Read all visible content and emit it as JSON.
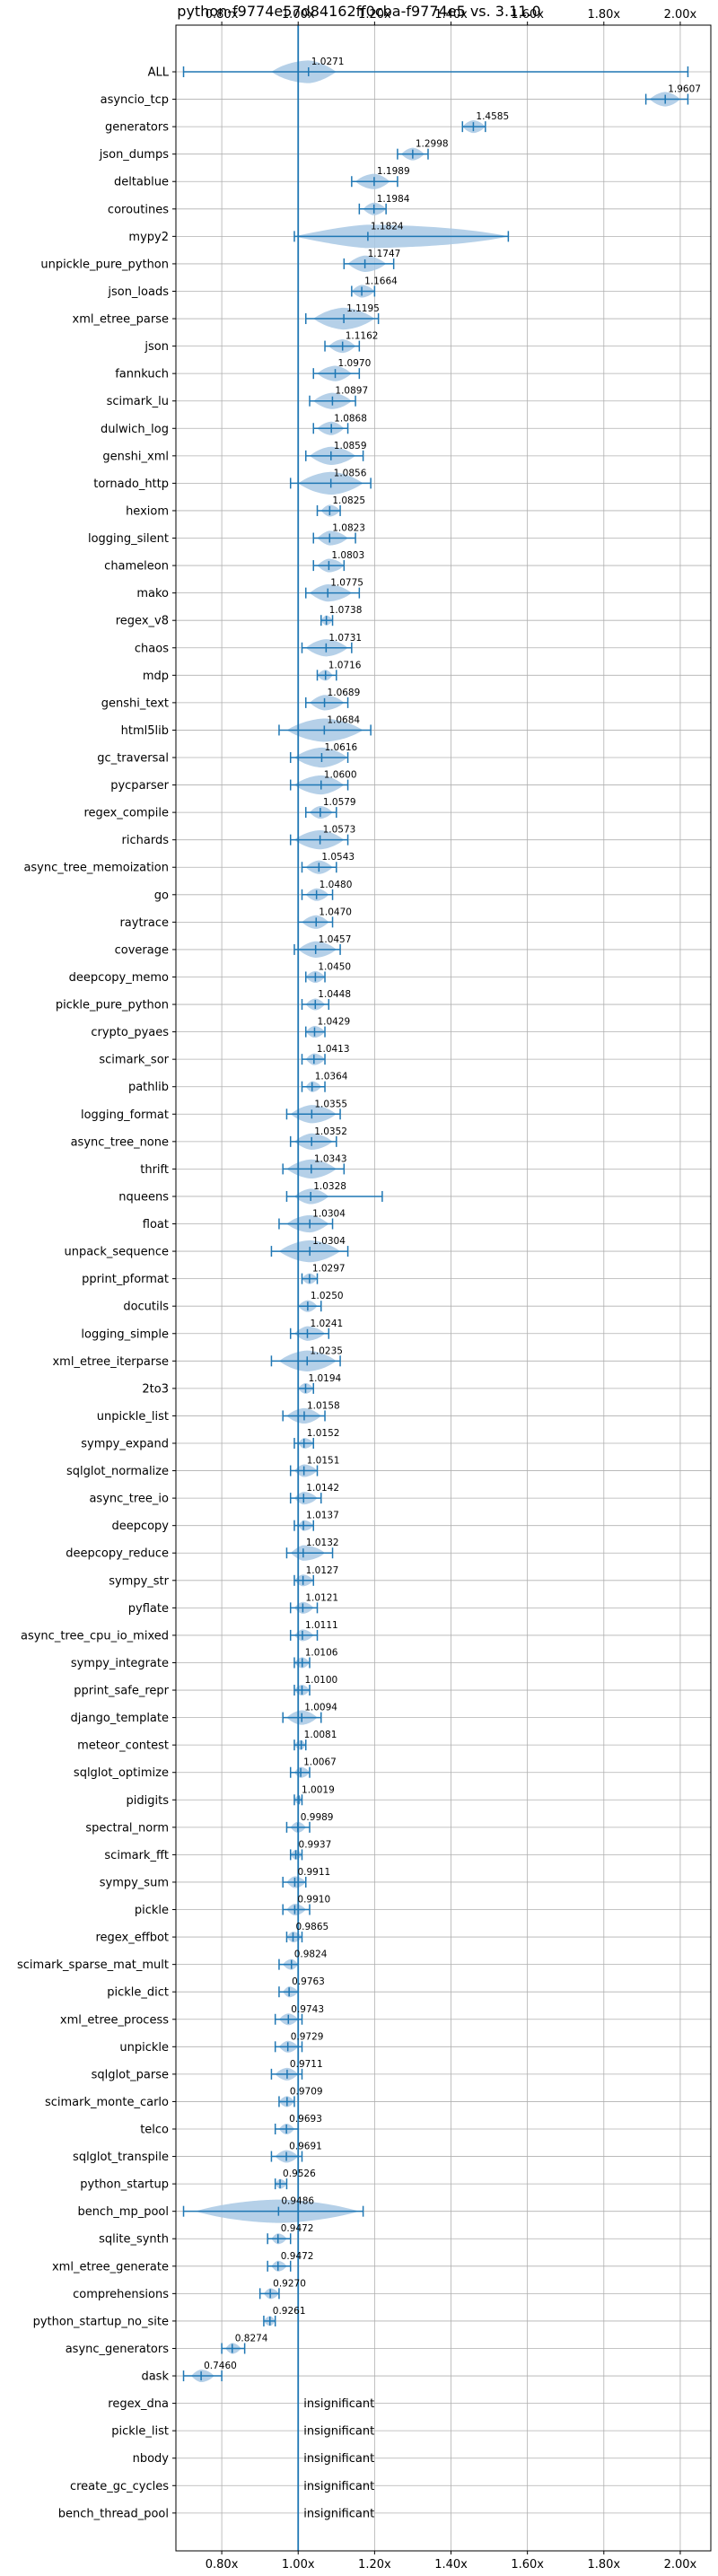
{
  "chart_data": {
    "type": "violin",
    "title": "python-f9774e57d84162ff0cba-f9774e5 vs. 3.11.0",
    "xlim": [
      0.68,
      2.08
    ],
    "x_ticks": [
      0.8,
      1.0,
      1.2,
      1.4,
      1.6,
      1.8,
      2.0
    ],
    "x_tick_labels": [
      "0.80x",
      "1.00x",
      "1.20x",
      "1.40x",
      "1.60x",
      "1.80x",
      "2.00x"
    ],
    "reference_line": 1.0,
    "grid": true,
    "color": "#1f77b4",
    "violin_color": "#a8c8e4",
    "insignificant_label": "insignificant",
    "benchmarks": [
      {
        "name": "ALL",
        "label": "1.0271",
        "median": 1.0271,
        "min": 0.7,
        "max": 2.02,
        "violin": [
          0.93,
          1.1
        ]
      },
      {
        "name": "asyncio_tcp",
        "label": "1.9607",
        "median": 1.9607,
        "min": 1.91,
        "max": 2.02,
        "violin": [
          1.92,
          2.0
        ]
      },
      {
        "name": "generators",
        "label": "1.4585",
        "median": 1.4585,
        "min": 1.43,
        "max": 1.49,
        "violin": [
          1.43,
          1.49
        ]
      },
      {
        "name": "json_dumps",
        "label": "1.2998",
        "median": 1.2998,
        "min": 1.26,
        "max": 1.34,
        "violin": [
          1.27,
          1.33
        ]
      },
      {
        "name": "deltablue",
        "label": "1.1989",
        "median": 1.1989,
        "min": 1.14,
        "max": 1.26,
        "violin": [
          1.15,
          1.24
        ]
      },
      {
        "name": "coroutines",
        "label": "1.1984",
        "median": 1.1984,
        "min": 1.16,
        "max": 1.23,
        "violin": [
          1.17,
          1.23
        ]
      },
      {
        "name": "mypy2",
        "label": "1.1824",
        "median": 1.1824,
        "min": 0.99,
        "max": 1.55,
        "violin": [
          0.99,
          1.55
        ]
      },
      {
        "name": "unpickle_pure_python",
        "label": "1.1747",
        "median": 1.1747,
        "min": 1.12,
        "max": 1.25,
        "violin": [
          1.13,
          1.23
        ]
      },
      {
        "name": "json_loads",
        "label": "1.1664",
        "median": 1.1664,
        "min": 1.14,
        "max": 1.2,
        "violin": [
          1.14,
          1.2
        ]
      },
      {
        "name": "xml_etree_parse",
        "label": "1.1195",
        "median": 1.1195,
        "min": 1.02,
        "max": 1.21,
        "violin": [
          1.04,
          1.2
        ]
      },
      {
        "name": "json",
        "label": "1.1162",
        "median": 1.1162,
        "min": 1.07,
        "max": 1.16,
        "violin": [
          1.08,
          1.15
        ]
      },
      {
        "name": "fannkuch",
        "label": "1.0970",
        "median": 1.097,
        "min": 1.04,
        "max": 1.16,
        "violin": [
          1.05,
          1.14
        ]
      },
      {
        "name": "scimark_lu",
        "label": "1.0897",
        "median": 1.0897,
        "min": 1.03,
        "max": 1.15,
        "violin": [
          1.04,
          1.14
        ]
      },
      {
        "name": "dulwich_log",
        "label": "1.0868",
        "median": 1.0868,
        "min": 1.04,
        "max": 1.13,
        "violin": [
          1.05,
          1.12
        ]
      },
      {
        "name": "genshi_xml",
        "label": "1.0859",
        "median": 1.0859,
        "min": 1.02,
        "max": 1.17,
        "violin": [
          1.03,
          1.15
        ]
      },
      {
        "name": "tornado_http",
        "label": "1.0856",
        "median": 1.0856,
        "min": 0.98,
        "max": 1.19,
        "violin": [
          1.0,
          1.17
        ]
      },
      {
        "name": "hexiom",
        "label": "1.0825",
        "median": 1.0825,
        "min": 1.05,
        "max": 1.11,
        "violin": [
          1.06,
          1.11
        ]
      },
      {
        "name": "logging_silent",
        "label": "1.0823",
        "median": 1.0823,
        "min": 1.04,
        "max": 1.15,
        "violin": [
          1.05,
          1.13
        ]
      },
      {
        "name": "chameleon",
        "label": "1.0803",
        "median": 1.0803,
        "min": 1.04,
        "max": 1.12,
        "violin": [
          1.05,
          1.12
        ]
      },
      {
        "name": "mako",
        "label": "1.0775",
        "median": 1.0775,
        "min": 1.02,
        "max": 1.16,
        "violin": [
          1.03,
          1.14
        ]
      },
      {
        "name": "regex_v8",
        "label": "1.0738",
        "median": 1.0738,
        "min": 1.06,
        "max": 1.09,
        "violin": [
          1.06,
          1.09
        ]
      },
      {
        "name": "chaos",
        "label": "1.0731",
        "median": 1.0731,
        "min": 1.01,
        "max": 1.14,
        "violin": [
          1.02,
          1.13
        ]
      },
      {
        "name": "mdp",
        "label": "1.0716",
        "median": 1.0716,
        "min": 1.05,
        "max": 1.1,
        "violin": [
          1.05,
          1.09
        ]
      },
      {
        "name": "genshi_text",
        "label": "1.0689",
        "median": 1.0689,
        "min": 1.02,
        "max": 1.13,
        "violin": [
          1.03,
          1.12
        ]
      },
      {
        "name": "html5lib",
        "label": "1.0684",
        "median": 1.0684,
        "min": 0.95,
        "max": 1.19,
        "violin": [
          0.97,
          1.17
        ]
      },
      {
        "name": "gc_traversal",
        "label": "1.0616",
        "median": 1.0616,
        "min": 0.98,
        "max": 1.13,
        "violin": [
          0.99,
          1.13
        ]
      },
      {
        "name": "pycparser",
        "label": "1.0600",
        "median": 1.06,
        "min": 0.98,
        "max": 1.13,
        "violin": [
          0.99,
          1.12
        ]
      },
      {
        "name": "regex_compile",
        "label": "1.0579",
        "median": 1.0579,
        "min": 1.02,
        "max": 1.1,
        "violin": [
          1.03,
          1.09
        ]
      },
      {
        "name": "richards",
        "label": "1.0573",
        "median": 1.0573,
        "min": 0.98,
        "max": 1.13,
        "violin": [
          0.99,
          1.12
        ]
      },
      {
        "name": "async_tree_memoization",
        "label": "1.0543",
        "median": 1.0543,
        "min": 1.01,
        "max": 1.1,
        "violin": [
          1.02,
          1.09
        ]
      },
      {
        "name": "go",
        "label": "1.0480",
        "median": 1.048,
        "min": 1.01,
        "max": 1.09,
        "violin": [
          1.02,
          1.08
        ]
      },
      {
        "name": "raytrace",
        "label": "1.0470",
        "median": 1.047,
        "min": 1.0,
        "max": 1.09,
        "violin": [
          1.01,
          1.08
        ]
      },
      {
        "name": "coverage",
        "label": "1.0457",
        "median": 1.0457,
        "min": 0.99,
        "max": 1.11,
        "violin": [
          1.0,
          1.1
        ]
      },
      {
        "name": "deepcopy_memo",
        "label": "1.0450",
        "median": 1.045,
        "min": 1.02,
        "max": 1.07,
        "violin": [
          1.02,
          1.07
        ]
      },
      {
        "name": "pickle_pure_python",
        "label": "1.0448",
        "median": 1.0448,
        "min": 1.01,
        "max": 1.08,
        "violin": [
          1.02,
          1.07
        ]
      },
      {
        "name": "crypto_pyaes",
        "label": "1.0429",
        "median": 1.0429,
        "min": 1.02,
        "max": 1.07,
        "violin": [
          1.02,
          1.07
        ]
      },
      {
        "name": "scimark_sor",
        "label": "1.0413",
        "median": 1.0413,
        "min": 1.01,
        "max": 1.07,
        "violin": [
          1.02,
          1.07
        ]
      },
      {
        "name": "pathlib",
        "label": "1.0364",
        "median": 1.0364,
        "min": 1.01,
        "max": 1.07,
        "violin": [
          1.02,
          1.06
        ]
      },
      {
        "name": "logging_format",
        "label": "1.0355",
        "median": 1.0355,
        "min": 0.97,
        "max": 1.11,
        "violin": [
          0.98,
          1.1
        ]
      },
      {
        "name": "async_tree_none",
        "label": "1.0352",
        "median": 1.0352,
        "min": 0.98,
        "max": 1.1,
        "violin": [
          0.99,
          1.09
        ]
      },
      {
        "name": "thrift",
        "label": "1.0343",
        "median": 1.0343,
        "min": 0.96,
        "max": 1.12,
        "violin": [
          0.97,
          1.1
        ]
      },
      {
        "name": "nqueens",
        "label": "1.0328",
        "median": 1.0328,
        "min": 0.97,
        "max": 1.22,
        "violin": [
          0.99,
          1.08
        ]
      },
      {
        "name": "float",
        "label": "1.0304",
        "median": 1.0304,
        "min": 0.95,
        "max": 1.09,
        "violin": [
          0.97,
          1.08
        ]
      },
      {
        "name": "unpack_sequence",
        "label": "1.0304",
        "median": 1.0304,
        "min": 0.93,
        "max": 1.13,
        "violin": [
          0.95,
          1.11
        ]
      },
      {
        "name": "pprint_pformat",
        "label": "1.0297",
        "median": 1.0297,
        "min": 1.01,
        "max": 1.05,
        "violin": [
          1.01,
          1.05
        ]
      },
      {
        "name": "docutils",
        "label": "1.0250",
        "median": 1.025,
        "min": 1.0,
        "max": 1.06,
        "violin": [
          1.0,
          1.05
        ]
      },
      {
        "name": "logging_simple",
        "label": "1.0241",
        "median": 1.0241,
        "min": 0.98,
        "max": 1.08,
        "violin": [
          0.99,
          1.07
        ]
      },
      {
        "name": "xml_etree_iterparse",
        "label": "1.0235",
        "median": 1.0235,
        "min": 0.93,
        "max": 1.11,
        "violin": [
          0.95,
          1.1
        ]
      },
      {
        "name": "2to3",
        "label": "1.0194",
        "median": 1.0194,
        "min": 1.0,
        "max": 1.04,
        "violin": [
          1.0,
          1.04
        ]
      },
      {
        "name": "unpickle_list",
        "label": "1.0158",
        "median": 1.0158,
        "min": 0.96,
        "max": 1.07,
        "violin": [
          0.97,
          1.06
        ]
      },
      {
        "name": "sympy_expand",
        "label": "1.0152",
        "median": 1.0152,
        "min": 0.99,
        "max": 1.04,
        "violin": [
          1.0,
          1.04
        ]
      },
      {
        "name": "sqlglot_normalize",
        "label": "1.0151",
        "median": 1.0151,
        "min": 0.98,
        "max": 1.05,
        "violin": [
          0.99,
          1.05
        ]
      },
      {
        "name": "async_tree_io",
        "label": "1.0142",
        "median": 1.0142,
        "min": 0.98,
        "max": 1.06,
        "violin": [
          0.99,
          1.05
        ]
      },
      {
        "name": "deepcopy",
        "label": "1.0137",
        "median": 1.0137,
        "min": 0.99,
        "max": 1.04,
        "violin": [
          1.0,
          1.04
        ]
      },
      {
        "name": "deepcopy_reduce",
        "label": "1.0132",
        "median": 1.0132,
        "min": 0.97,
        "max": 1.09,
        "violin": [
          0.98,
          1.07
        ]
      },
      {
        "name": "sympy_str",
        "label": "1.0127",
        "median": 1.0127,
        "min": 0.99,
        "max": 1.04,
        "violin": [
          0.99,
          1.04
        ]
      },
      {
        "name": "pyflate",
        "label": "1.0121",
        "median": 1.0121,
        "min": 0.98,
        "max": 1.05,
        "violin": [
          0.99,
          1.04
        ]
      },
      {
        "name": "async_tree_cpu_io_mixed",
        "label": "1.0111",
        "median": 1.0111,
        "min": 0.98,
        "max": 1.05,
        "violin": [
          0.99,
          1.04
        ]
      },
      {
        "name": "sympy_integrate",
        "label": "1.0106",
        "median": 1.0106,
        "min": 0.99,
        "max": 1.03,
        "violin": [
          0.99,
          1.03
        ]
      },
      {
        "name": "pprint_safe_repr",
        "label": "1.0100",
        "median": 1.01,
        "min": 0.99,
        "max": 1.03,
        "violin": [
          0.99,
          1.03
        ]
      },
      {
        "name": "django_template",
        "label": "1.0094",
        "median": 1.0094,
        "min": 0.96,
        "max": 1.06,
        "violin": [
          0.97,
          1.05
        ]
      },
      {
        "name": "meteor_contest",
        "label": "1.0081",
        "median": 1.0081,
        "min": 0.99,
        "max": 1.02,
        "violin": [
          0.99,
          1.02
        ]
      },
      {
        "name": "sqlglot_optimize",
        "label": "1.0067",
        "median": 1.0067,
        "min": 0.98,
        "max": 1.03,
        "violin": [
          0.99,
          1.03
        ]
      },
      {
        "name": "pidigits",
        "label": "1.0019",
        "median": 1.0019,
        "min": 0.99,
        "max": 1.01,
        "violin": [
          0.99,
          1.01
        ]
      },
      {
        "name": "spectral_norm",
        "label": "0.9989",
        "median": 0.9989,
        "min": 0.97,
        "max": 1.03,
        "violin": [
          0.98,
          1.02
        ]
      },
      {
        "name": "scimark_fft",
        "label": "0.9937",
        "median": 0.9937,
        "min": 0.98,
        "max": 1.01,
        "violin": [
          0.98,
          1.01
        ]
      },
      {
        "name": "sympy_sum",
        "label": "0.9911",
        "median": 0.9911,
        "min": 0.96,
        "max": 1.02,
        "violin": [
          0.97,
          1.02
        ]
      },
      {
        "name": "pickle",
        "label": "0.9910",
        "median": 0.991,
        "min": 0.96,
        "max": 1.03,
        "violin": [
          0.97,
          1.02
        ]
      },
      {
        "name": "regex_effbot",
        "label": "0.9865",
        "median": 0.9865,
        "min": 0.97,
        "max": 1.01,
        "violin": [
          0.97,
          1.01
        ]
      },
      {
        "name": "scimark_sparse_mat_mult",
        "label": "0.9824",
        "median": 0.9824,
        "min": 0.95,
        "max": 1.0,
        "violin": [
          0.96,
          1.0
        ]
      },
      {
        "name": "pickle_dict",
        "label": "0.9763",
        "median": 0.9763,
        "min": 0.95,
        "max": 1.0,
        "violin": [
          0.96,
          1.0
        ]
      },
      {
        "name": "xml_etree_process",
        "label": "0.9743",
        "median": 0.9743,
        "min": 0.94,
        "max": 1.01,
        "violin": [
          0.95,
          1.0
        ]
      },
      {
        "name": "unpickle",
        "label": "0.9729",
        "median": 0.9729,
        "min": 0.94,
        "max": 1.01,
        "violin": [
          0.95,
          1.0
        ]
      },
      {
        "name": "sqlglot_parse",
        "label": "0.9711",
        "median": 0.9711,
        "min": 0.93,
        "max": 1.01,
        "violin": [
          0.94,
          1.0
        ]
      },
      {
        "name": "scimark_monte_carlo",
        "label": "0.9709",
        "median": 0.9709,
        "min": 0.95,
        "max": 0.99,
        "violin": [
          0.95,
          0.99
        ]
      },
      {
        "name": "telco",
        "label": "0.9693",
        "median": 0.9693,
        "min": 0.94,
        "max": 1.0,
        "violin": [
          0.95,
          0.99
        ]
      },
      {
        "name": "sqlglot_transpile",
        "label": "0.9691",
        "median": 0.9691,
        "min": 0.93,
        "max": 1.01,
        "violin": [
          0.94,
          1.0
        ]
      },
      {
        "name": "python_startup",
        "label": "0.9526",
        "median": 0.9526,
        "min": 0.94,
        "max": 0.97,
        "violin": [
          0.94,
          0.97
        ]
      },
      {
        "name": "bench_mp_pool",
        "label": "0.9486",
        "median": 0.9486,
        "min": 0.7,
        "max": 1.17,
        "violin": [
          0.73,
          1.16
        ]
      },
      {
        "name": "sqlite_synth",
        "label": "0.9472",
        "median": 0.9472,
        "min": 0.92,
        "max": 0.98,
        "violin": [
          0.93,
          0.97
        ]
      },
      {
        "name": "xml_etree_generate",
        "label": "0.9472",
        "median": 0.9472,
        "min": 0.92,
        "max": 0.98,
        "violin": [
          0.93,
          0.97
        ]
      },
      {
        "name": "comprehensions",
        "label": "0.9270",
        "median": 0.927,
        "min": 0.9,
        "max": 0.95,
        "violin": [
          0.91,
          0.95
        ]
      },
      {
        "name": "python_startup_no_site",
        "label": "0.9261",
        "median": 0.9261,
        "min": 0.91,
        "max": 0.94,
        "violin": [
          0.91,
          0.94
        ]
      },
      {
        "name": "async_generators",
        "label": "0.8274",
        "median": 0.8274,
        "min": 0.8,
        "max": 0.86,
        "violin": [
          0.81,
          0.85
        ]
      },
      {
        "name": "dask",
        "label": "0.7460",
        "median": 0.746,
        "min": 0.7,
        "max": 0.8,
        "violin": [
          0.72,
          0.78
        ]
      },
      {
        "name": "regex_dna",
        "insignificant": true
      },
      {
        "name": "pickle_list",
        "insignificant": true
      },
      {
        "name": "nbody",
        "insignificant": true
      },
      {
        "name": "create_gc_cycles",
        "insignificant": true
      },
      {
        "name": "bench_thread_pool",
        "insignificant": true
      }
    ]
  }
}
